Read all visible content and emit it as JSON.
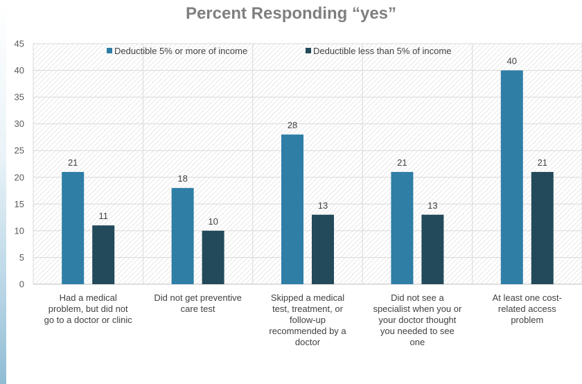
{
  "chart_data": {
    "type": "bar",
    "title": "Percent Responding “yes”",
    "categories": [
      [
        "Had a medical",
        "problem, but did not",
        "go to a doctor or clinic"
      ],
      [
        "Did not get preventive",
        "care test"
      ],
      [
        "Skipped a medical",
        "test, treatment, or",
        "follow-up",
        "recommended by a",
        "doctor"
      ],
      [
        "Did not see a",
        "specialist when you or",
        "your doctor thought",
        "you needed to see",
        "one"
      ],
      [
        "At least one cost-",
        "related access",
        "problem"
      ]
    ],
    "series": [
      {
        "name": "Deductible 5% or more of income",
        "values": [
          21,
          18,
          28,
          21,
          40
        ],
        "color": "#2e7ea6"
      },
      {
        "name": "Deductible less than 5% of income",
        "values": [
          11,
          10,
          13,
          13,
          21
        ],
        "color": "#234a5b"
      }
    ],
    "ylim": [
      0,
      45
    ],
    "yticks": [
      0,
      5,
      10,
      15,
      20,
      25,
      30,
      35,
      40,
      45
    ],
    "grid": true,
    "legend_position": "top",
    "data_labels": true
  }
}
